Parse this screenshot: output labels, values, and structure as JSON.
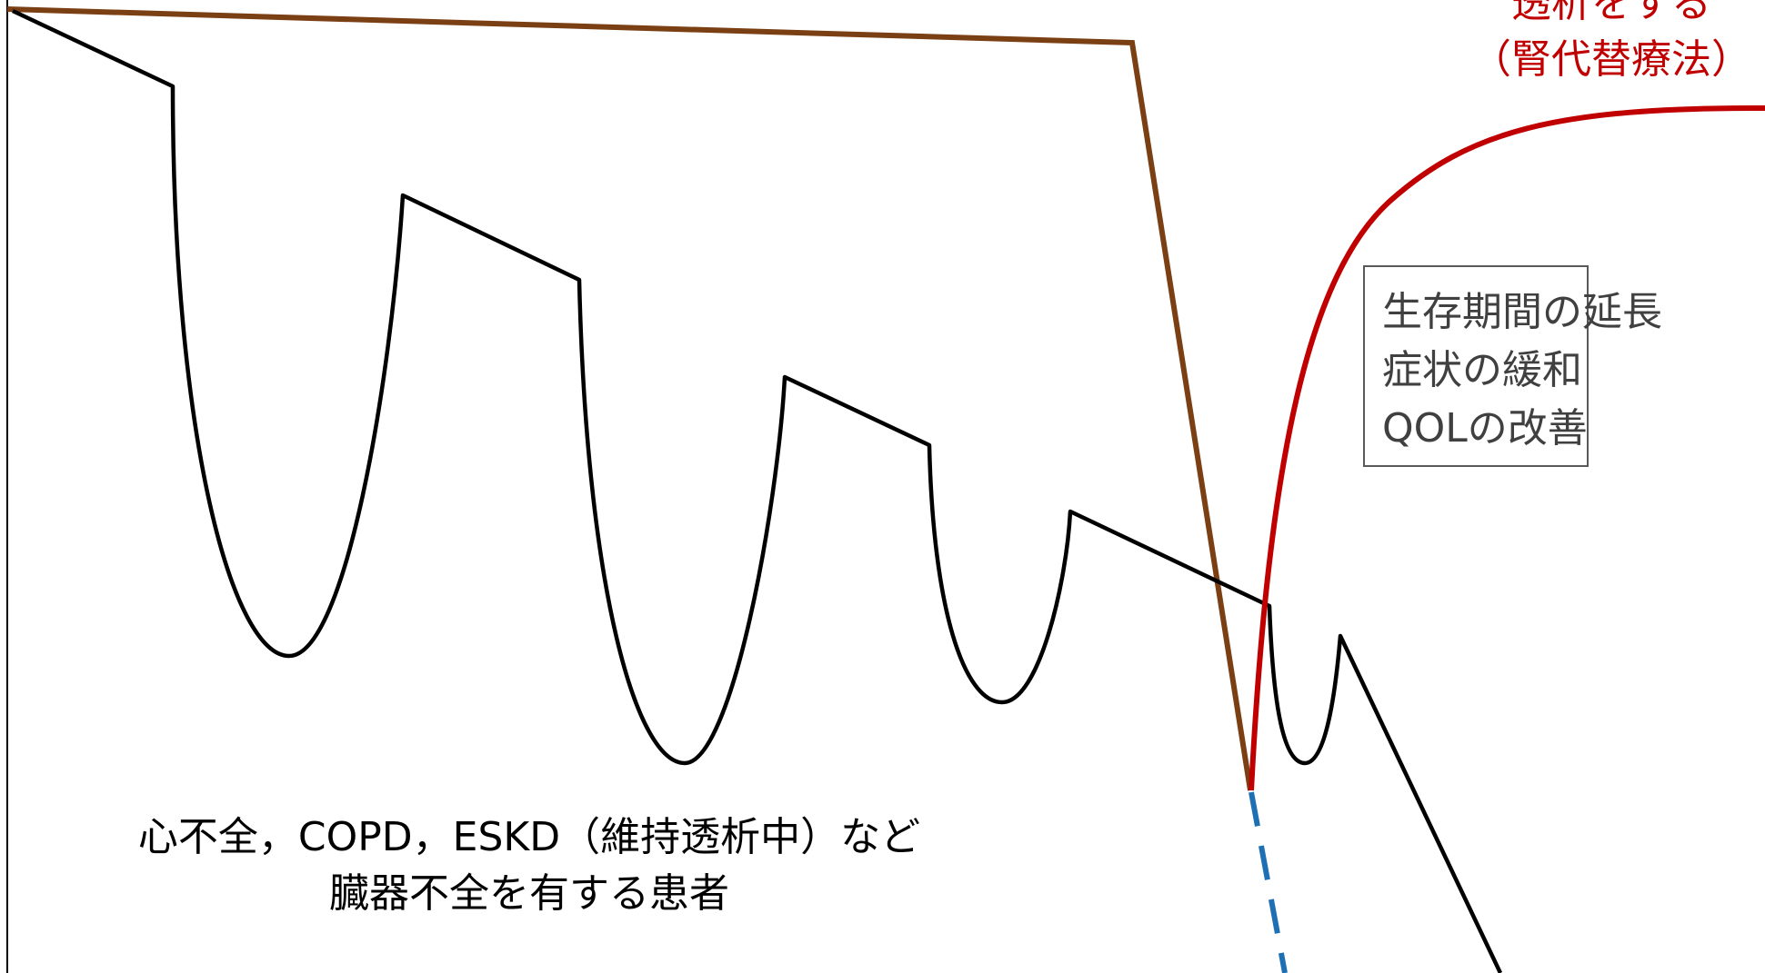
{
  "diagram": {
    "patient_label": {
      "line1": "心不全，COPD，ESKD（維持透析中）など",
      "line2": "臓器不全を有する患者"
    },
    "dialysis_label": {
      "line1": "透析をする",
      "line2": "（腎代替療法）"
    },
    "benefits_box": {
      "line1": "生存期間の延長",
      "line2": "症状の緩和",
      "line3": "QOLの改善"
    }
  },
  "colors": {
    "baseline_line": "#7B3F14",
    "trajectory_line": "#000000",
    "dialysis_curve": "#C00000",
    "dashed_line": "#1F6FB5",
    "axis": "#000000",
    "box_border": "#595959",
    "label_text": "#000000",
    "benefits_text": "#404040",
    "dialysis_text": "#C00000"
  }
}
